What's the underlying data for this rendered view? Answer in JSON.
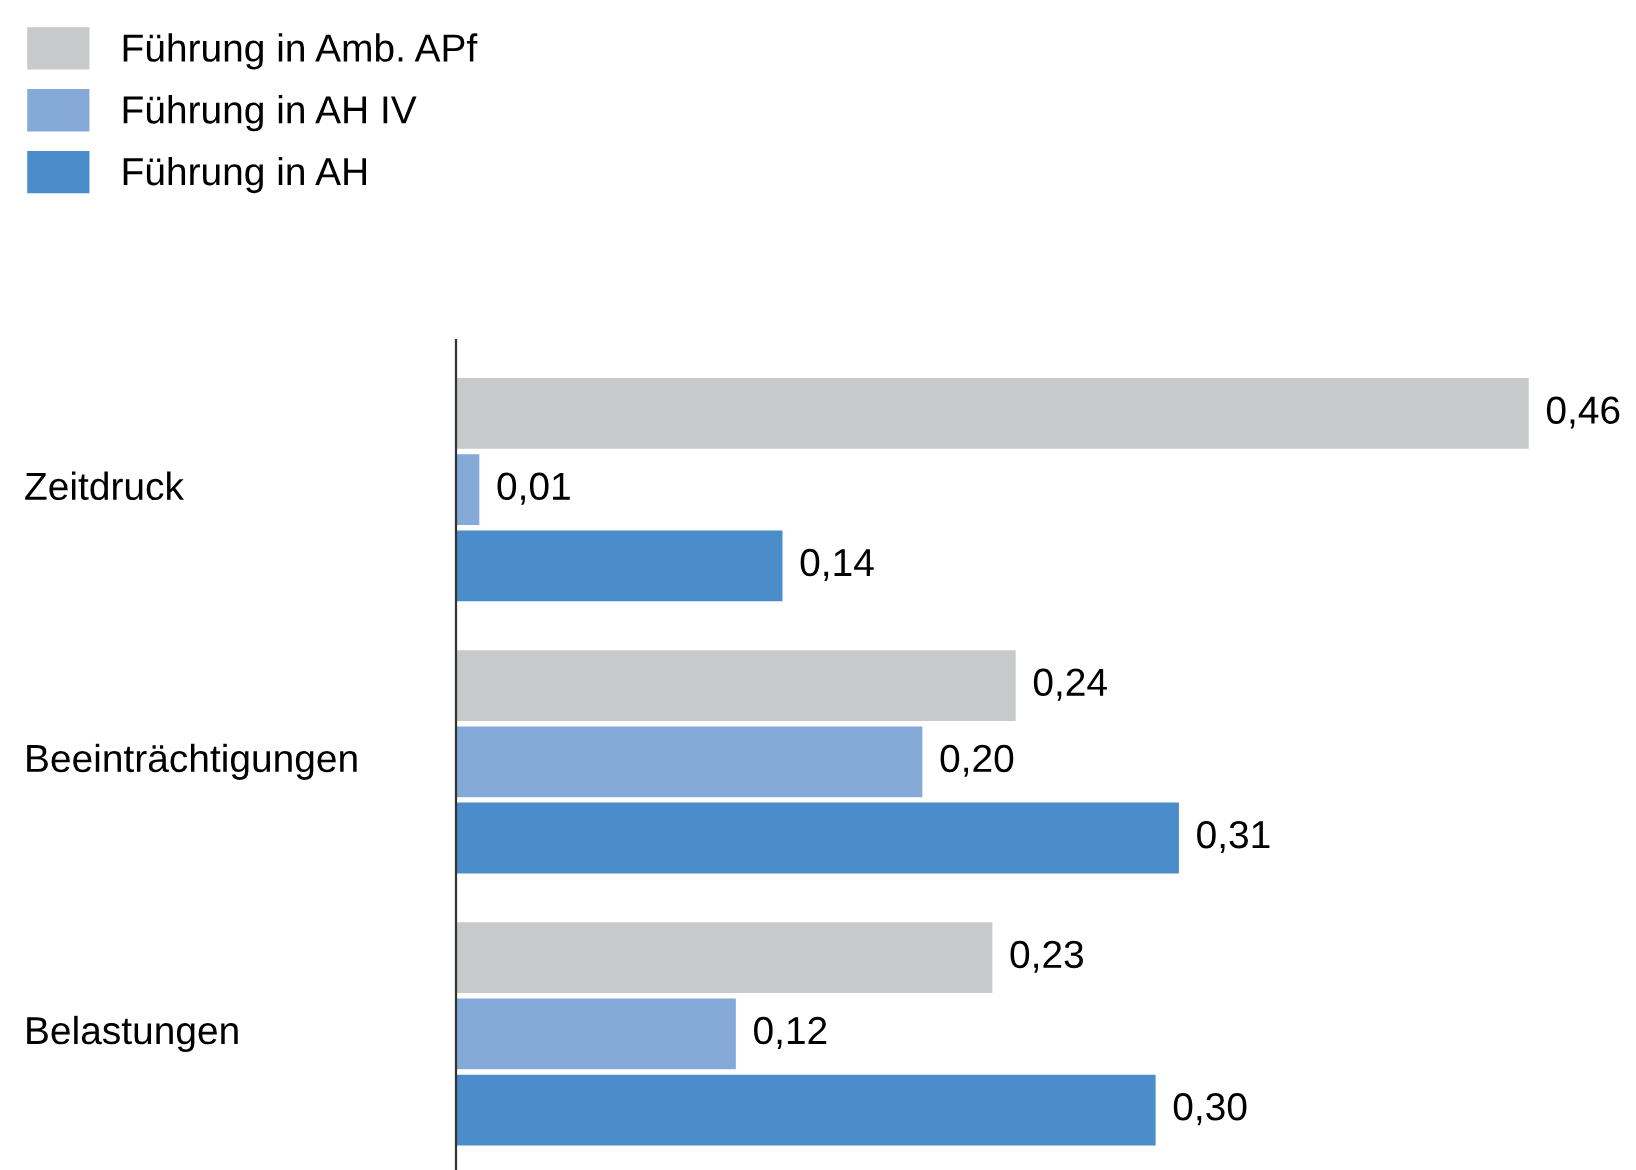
{
  "chart_data": {
    "type": "bar",
    "orientation": "horizontal",
    "categories": [
      "Zeitdruck",
      "Beeinträchtigungen",
      "Belastungen"
    ],
    "series": [
      {
        "name": "Führung in Amb. APf",
        "color": "#c8c9cb",
        "values": [
          0.46,
          0.24,
          0.23
        ],
        "value_labels": [
          "0,46",
          "0,24",
          "0,23"
        ]
      },
      {
        "name": "Führung in AH IV",
        "color": "#85aad8",
        "values": [
          0.01,
          0.2,
          0.12
        ],
        "value_labels": [
          "0,01",
          "0,20",
          "0,12"
        ]
      },
      {
        "name": "Führung in AH",
        "color": "#4a8dca",
        "values": [
          0.14,
          0.31,
          0.3
        ],
        "value_labels": [
          "0,14",
          "0,31",
          "0,30"
        ]
      }
    ],
    "legend": "top left"
  }
}
